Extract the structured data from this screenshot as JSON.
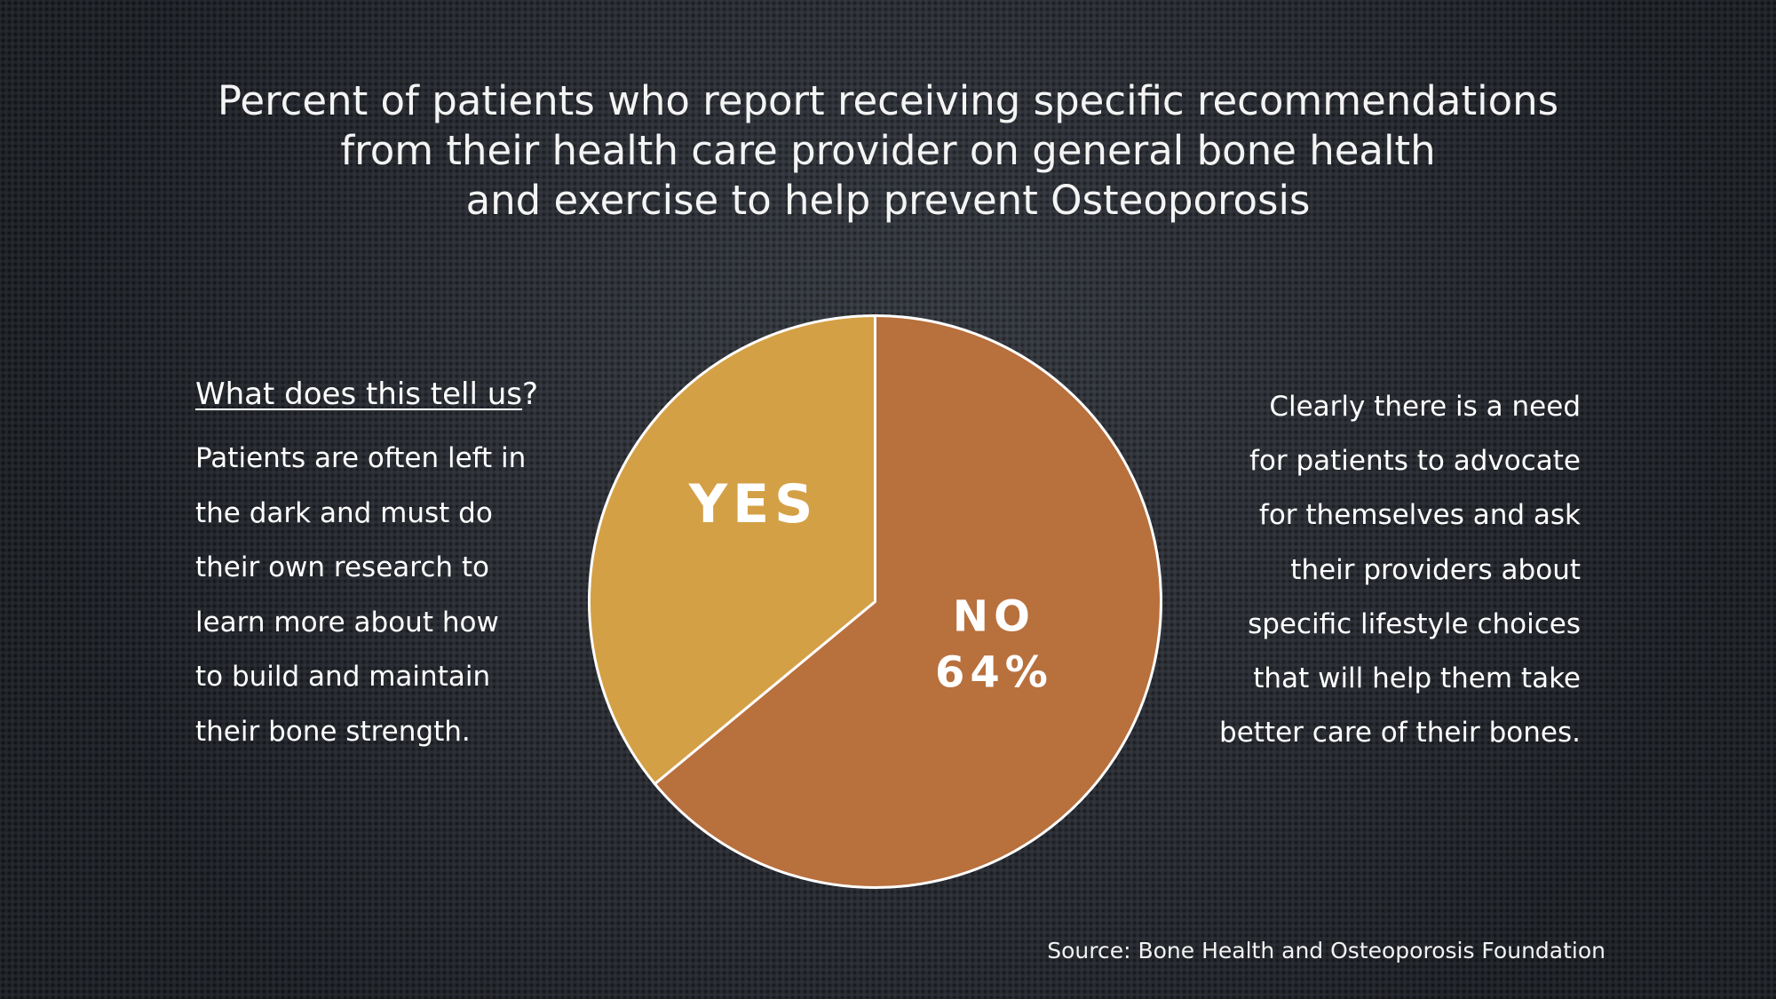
{
  "slide": {
    "title_lines": [
      "Percent of patients who report receiving specific recommendations",
      "from their health care provider on general bone health",
      "and exercise to help prevent Osteoporosis"
    ],
    "left": {
      "heading_underlined": "What does this tell us",
      "heading_suffix": "?",
      "lines": [
        "Patients are often left in",
        "the dark and must do",
        "their own research to",
        "learn more about how",
        "to build and maintain",
        "their bone strength."
      ]
    },
    "right": {
      "lines": [
        "Clearly there is a need",
        "for patients to advocate",
        "for themselves and ask",
        "their providers about",
        "specific lifestyle choices",
        "that will help them take",
        "better care of their bones."
      ]
    },
    "source": "Source: Bone Health and Osteoporosis Foundation"
  },
  "chart_data": {
    "type": "pie",
    "title": "Percent of patients who report receiving specific recommendations from their health care provider on general bone health and exercise to help prevent Osteoporosis",
    "categories": [
      "NO",
      "YES"
    ],
    "values": [
      64,
      36
    ],
    "slice_labels": [
      {
        "category": "NO",
        "value_text": "64%"
      },
      {
        "category": "YES",
        "value_text": ""
      }
    ],
    "colors": [
      "#b8703d",
      "#d4a046"
    ],
    "start_angle_deg": 0,
    "direction": "clockwise"
  }
}
